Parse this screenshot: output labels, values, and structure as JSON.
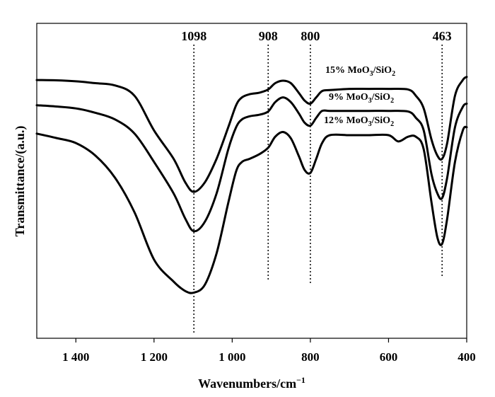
{
  "chart_data": {
    "type": "line",
    "xlabel": "Wavenumbers/cm",
    "xlabel_sup": "−1",
    "ylabel": "Transmittance/(a.u.)",
    "xlim": [
      1500,
      400
    ],
    "x_reversed": true,
    "x_ticks": [
      {
        "value": 1400,
        "label": "1 400"
      },
      {
        "value": 1200,
        "label": "1 200"
      },
      {
        "value": 1000,
        "label": "1 000"
      },
      {
        "value": 800,
        "label": "800"
      },
      {
        "value": 600,
        "label": "600"
      },
      {
        "value": 400,
        "label": "400"
      }
    ],
    "y_ticks_shown": false,
    "ylim": [
      0,
      100
    ],
    "peaks": [
      {
        "value": 1098,
        "label": "1098"
      },
      {
        "value": 908,
        "label": "908"
      },
      {
        "value": 800,
        "label": "800"
      },
      {
        "value": 463,
        "label": "463"
      }
    ],
    "series": [
      {
        "name": "15% MoO3/SiO2",
        "label_main": "15% MoO",
        "label_sub1": "3",
        "label_mid": "/SiO",
        "label_sub2": "2",
        "x": [
          1500,
          1450,
          1400,
          1350,
          1300,
          1250,
          1200,
          1150,
          1120,
          1098,
          1070,
          1040,
          1010,
          990,
          975,
          955,
          930,
          908,
          890,
          870,
          850,
          830,
          815,
          800,
          785,
          770,
          750,
          700,
          650,
          600,
          550,
          530,
          510,
          490,
          475,
          463,
          450,
          430,
          410,
          400
        ],
        "y": [
          82,
          81.9,
          81.6,
          81,
          80.3,
          77,
          66,
          57,
          49.5,
          46.5,
          49.5,
          57,
          67,
          74,
          76.5,
          77.5,
          78,
          79,
          81,
          81.8,
          81,
          78,
          75.5,
          74.5,
          76.5,
          78.5,
          78.8,
          79.2,
          79.2,
          79.2,
          79,
          77,
          73,
          63,
          58,
          57,
          62,
          77,
          82,
          83
        ]
      },
      {
        "name": "9% MoO3/SiO2",
        "label_main": "9% MoO",
        "label_sub1": "3",
        "label_mid": "/SiO",
        "label_sub2": "2",
        "x": [
          1500,
          1450,
          1400,
          1350,
          1300,
          1250,
          1200,
          1150,
          1120,
          1098,
          1070,
          1040,
          1010,
          990,
          975,
          955,
          930,
          908,
          890,
          870,
          850,
          830,
          815,
          800,
          785,
          770,
          750,
          700,
          650,
          600,
          550,
          530,
          510,
          490,
          475,
          463,
          450,
          430,
          410,
          400
        ],
        "y": [
          74,
          73.6,
          73,
          71.6,
          69.5,
          65,
          56,
          46,
          38,
          34,
          37,
          46,
          60,
          67,
          69.5,
          70.5,
          71,
          72,
          75,
          76.5,
          75,
          71.5,
          68.5,
          67.5,
          70,
          72.2,
          72.2,
          72.2,
          72.2,
          72.2,
          72,
          70,
          66,
          52,
          46,
          44.5,
          51,
          67,
          73.5,
          74.5
        ]
      },
      {
        "name": "12% MoO3/SiO2",
        "label_main": "12% MoO",
        "label_sub1": "3",
        "label_mid": "/SiO",
        "label_sub2": "2",
        "x": [
          1500,
          1450,
          1400,
          1350,
          1300,
          1250,
          1200,
          1150,
          1120,
          1098,
          1070,
          1040,
          1010,
          990,
          975,
          955,
          930,
          908,
          890,
          870,
          850,
          830,
          815,
          800,
          785,
          770,
          750,
          700,
          650,
          600,
          575,
          550,
          530,
          510,
          490,
          475,
          463,
          450,
          430,
          410,
          400
        ],
        "y": [
          65,
          63.6,
          62,
          58,
          51,
          40,
          25,
          18,
          15,
          14.5,
          17,
          27,
          43,
          53,
          56,
          57,
          58.5,
          60.5,
          64,
          65.5,
          63.5,
          58,
          53.5,
          52.5,
          57,
          62,
          64.5,
          64.5,
          64.5,
          64.5,
          62.5,
          64,
          64,
          60,
          43,
          32,
          30,
          38,
          56,
          66,
          67
        ]
      }
    ]
  }
}
